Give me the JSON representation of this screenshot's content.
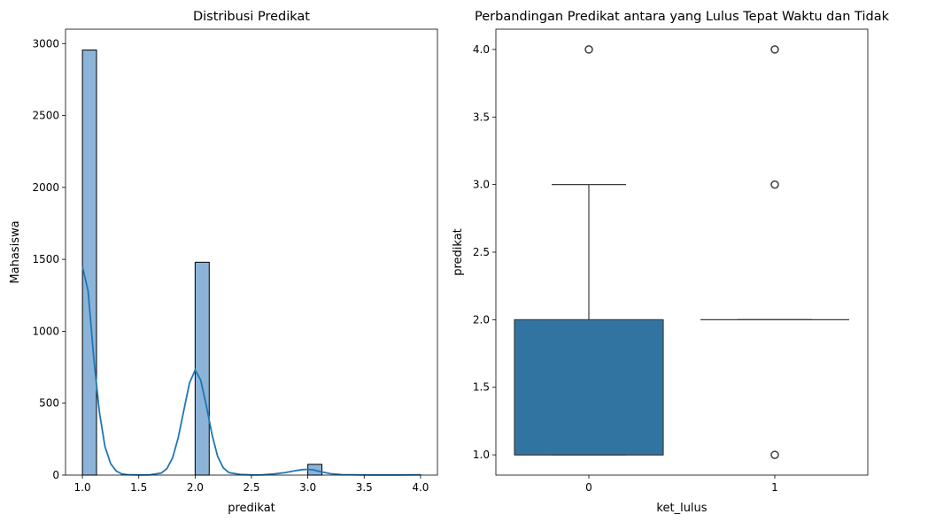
{
  "chart_data": [
    {
      "type": "histogram",
      "title": "Distribusi Predikat",
      "xlabel": "predikat",
      "ylabel": "Mahasiswa",
      "xlim": [
        0.85,
        4.15
      ],
      "ylim": [
        0,
        3100
      ],
      "x_ticks": [
        1.0,
        1.5,
        2.0,
        2.5,
        3.0,
        3.5,
        4.0
      ],
      "y_ticks": [
        0,
        500,
        1000,
        1500,
        2000,
        2500,
        3000
      ],
      "bins": [
        {
          "x0": 1.0,
          "x1": 1.125,
          "count": 2955
        },
        {
          "x0": 1.875,
          "x1": 2.0,
          "count": 0
        },
        {
          "x0": 2.0,
          "x1": 2.125,
          "count": 1480
        },
        {
          "x0": 2.875,
          "x1": 3.0,
          "count": 0
        },
        {
          "x0": 3.0,
          "x1": 3.125,
          "count": 75
        },
        {
          "x0": 3.875,
          "x1": 4.0,
          "count": 3
        },
        {
          "x0": 4.0,
          "x1": 4.125,
          "count": 0
        }
      ],
      "kde": {
        "x": [
          1.0,
          1.05,
          1.1,
          1.15,
          1.2,
          1.25,
          1.3,
          1.35,
          1.4,
          1.5,
          1.6,
          1.7,
          1.75,
          1.8,
          1.85,
          1.9,
          1.95,
          2.0,
          2.05,
          2.1,
          2.15,
          2.2,
          2.25,
          2.3,
          2.4,
          2.5,
          2.6,
          2.7,
          2.8,
          2.9,
          2.95,
          3.0,
          3.05,
          3.1,
          3.2,
          3.3,
          3.5,
          3.8,
          4.0
        ],
        "y": [
          1450,
          1280,
          820,
          440,
          200,
          80,
          28,
          8,
          3,
          1,
          2,
          15,
          45,
          120,
          260,
          450,
          640,
          730,
          660,
          480,
          280,
          130,
          50,
          18,
          4,
          1,
          2,
          8,
          18,
          32,
          38,
          40,
          36,
          26,
          10,
          3,
          1,
          1,
          2
        ]
      },
      "colors": {
        "bar": "#8cb4d9",
        "edge": "#000000",
        "kde": "#1f77b4"
      }
    },
    {
      "type": "boxplot",
      "title": "Perbandingan Predikat antara yang Lulus Tepat Waktu dan Tidak",
      "xlabel": "ket_lulus",
      "ylabel": "predikat",
      "categories": [
        "0",
        "1"
      ],
      "ylim": [
        0.85,
        4.15
      ],
      "y_ticks": [
        1.0,
        1.5,
        2.0,
        2.5,
        3.0,
        3.5,
        4.0
      ],
      "boxes": [
        {
          "category": "0",
          "q1": 1.0,
          "median": 1.0,
          "q3": 2.0,
          "whisker_low": 1.0,
          "whisker_high": 3.0,
          "outliers": [
            4.0
          ]
        },
        {
          "category": "1",
          "q1": 2.0,
          "median": 2.0,
          "q3": 2.0,
          "whisker_low": 2.0,
          "whisker_high": 2.0,
          "outliers": [
            1.0,
            3.0,
            4.0
          ]
        }
      ],
      "colors": {
        "box": "#3274a1",
        "line": "#3d3d3d"
      }
    }
  ]
}
